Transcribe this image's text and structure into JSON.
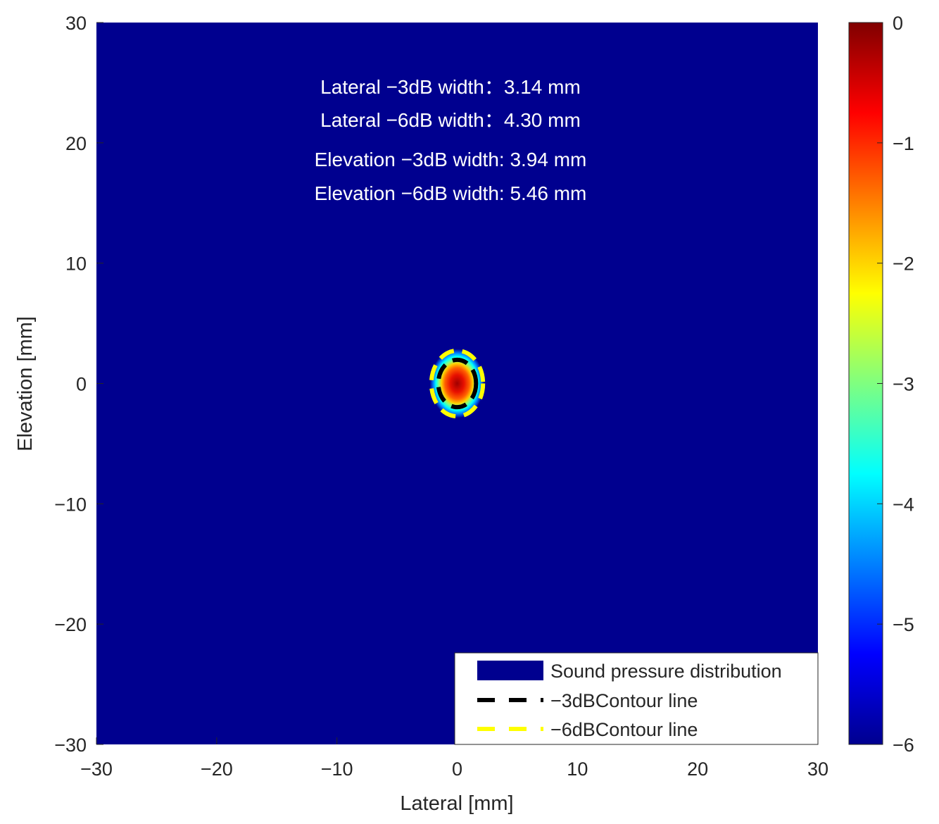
{
  "chart_data": {
    "type": "heatmap",
    "xlabel": "Lateral [mm]",
    "ylabel": "Elevation [mm]",
    "xlim": [
      -30,
      30
    ],
    "ylim": [
      -30,
      30
    ],
    "xticks": [
      -30,
      -20,
      -10,
      0,
      10,
      20,
      30
    ],
    "yticks": [
      -30,
      -20,
      -10,
      0,
      10,
      20,
      30
    ],
    "xtick_labels": [
      "−30",
      "−20",
      "−10",
      "0",
      "10",
      "20",
      "30"
    ],
    "ytick_labels": [
      "−30",
      "−20",
      "−10",
      "0",
      "10",
      "20",
      "30"
    ],
    "colorbar": {
      "range": [
        -6,
        0
      ],
      "ticks": [
        0,
        -1,
        -2,
        -3,
        -4,
        -5,
        -6
      ],
      "tick_labels": [
        "0",
        "−1",
        "−2",
        "−3",
        "−4",
        "−5",
        "−6"
      ],
      "colormap": "jet"
    },
    "background_value": -6,
    "peak": {
      "x": 0,
      "y": 0,
      "value": 0
    },
    "contours": [
      {
        "level": -3,
        "center_x": 0,
        "center_y": 0,
        "width_x": 3.14,
        "width_y": 3.94,
        "color": "#000000",
        "style": "dashed"
      },
      {
        "level": -6,
        "center_x": 0,
        "center_y": 0,
        "width_x": 4.3,
        "width_y": 5.46,
        "color": "#ffff00",
        "style": "dashed"
      }
    ],
    "annotations": [
      "Lateral −3dB width：3.14 mm",
      "Lateral −6dB width：4.30 mm",
      "Elevation −3dB width: 3.94 mm",
      "Elevation −6dB width: 5.46 mm"
    ],
    "legend": {
      "placement": "bottom-right",
      "entries": [
        {
          "label": "Sound pressure distribution",
          "color": "#00008f",
          "style": "patch"
        },
        {
          "label": "−3dBContour line",
          "color": "#000000",
          "style": "dashed"
        },
        {
          "label": "−6dBContour line",
          "color": "#ffff00",
          "style": "dashed"
        }
      ]
    }
  }
}
